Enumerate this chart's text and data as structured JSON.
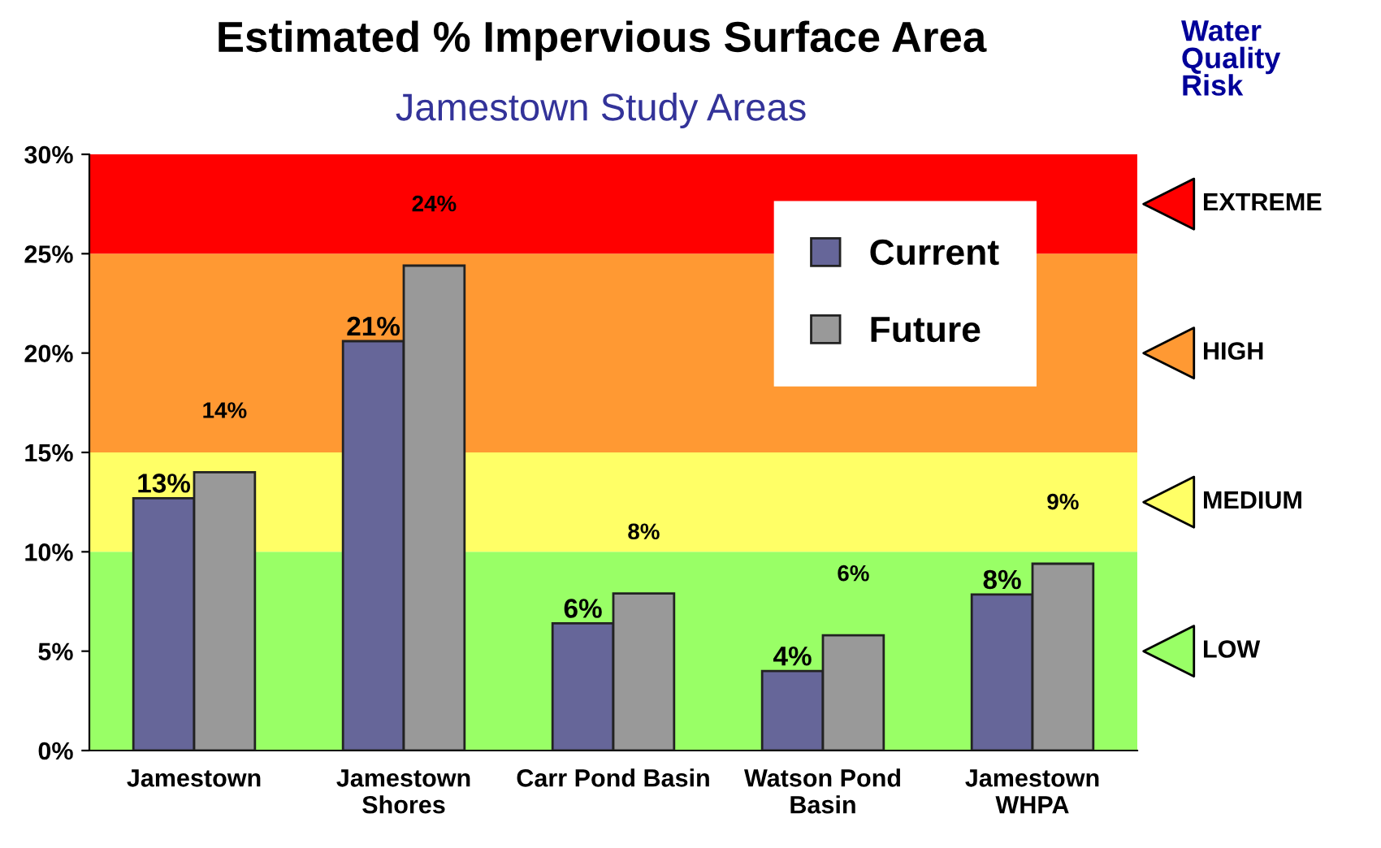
{
  "chart_data": {
    "type": "bar",
    "title": "Estimated % Impervious Surface Area",
    "subtitle": "Jamestown Study Areas",
    "categories": [
      "Jamestown",
      "Jamestown\nShores",
      "Carr Pond Basin",
      "Watson Pond\nBasin",
      "Jamestown\nWHPA"
    ],
    "series": [
      {
        "name": "Current",
        "color": "#666699",
        "values": [
          12.7,
          20.6,
          6.4,
          4.0,
          7.85
        ],
        "value_labels": [
          "13%",
          "21%",
          "6%",
          "4%",
          "8%"
        ]
      },
      {
        "name": "Future",
        "color": "#999999",
        "values": [
          14.0,
          24.4,
          7.9,
          5.8,
          9.4
        ],
        "value_labels": [
          "14%",
          "24%",
          "8%",
          "6%",
          "9%"
        ]
      }
    ],
    "ylim": [
      0,
      30
    ],
    "yticks": [
      {
        "value": 0,
        "label": "0%"
      },
      {
        "value": 5,
        "label": "5%"
      },
      {
        "value": 10,
        "label": "10%"
      },
      {
        "value": 15,
        "label": "15%"
      },
      {
        "value": 20,
        "label": "20%"
      },
      {
        "value": 25,
        "label": "25%"
      },
      {
        "value": 30,
        "label": "30%"
      }
    ],
    "bands": [
      {
        "axis": "y",
        "from": 0,
        "to": 10,
        "label": "LOW",
        "color": "#99ff66"
      },
      {
        "axis": "y",
        "from": 10,
        "to": 15,
        "label": "MEDIUM",
        "color": "#ffff66"
      },
      {
        "axis": "y",
        "from": 15,
        "to": 25,
        "label": "HIGH",
        "color": "#ff9933"
      },
      {
        "axis": "y",
        "from": 25,
        "to": 30,
        "label": "EXTREME",
        "color": "#ff0000"
      }
    ],
    "annotations": [
      "Water\nQuality\nRisk"
    ],
    "legend": "top right",
    "grid": false
  }
}
